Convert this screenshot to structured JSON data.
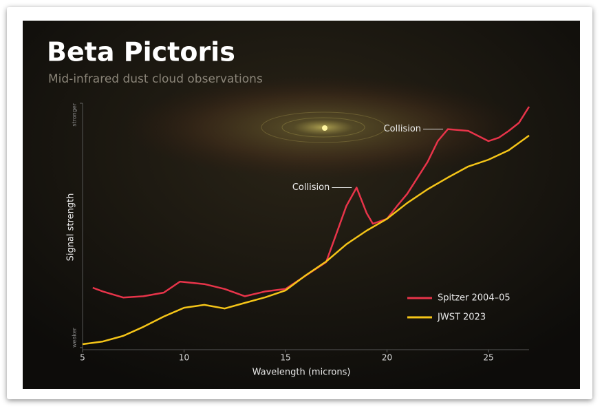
{
  "chart_data": {
    "type": "line",
    "title": "Beta Pictoris",
    "subtitle": "Mid-infrared dust cloud observations",
    "x_label": "Wavelength (microns)",
    "y_label": "Signal strength",
    "xlim": [
      5,
      27
    ],
    "xticks": [
      5,
      10,
      15,
      20,
      25
    ],
    "ylim": [
      0,
      100
    ],
    "yticks": [
      {
        "value": 0,
        "label": "weaker"
      },
      {
        "value": 100,
        "label": "stronger"
      }
    ],
    "legend": "lower right",
    "series": [
      {
        "name": "Spitzer 2004–05",
        "color": "#e8344a",
        "x": [
          5.5,
          6,
          7,
          8,
          9,
          9.8,
          11,
          12,
          13,
          14,
          15,
          16,
          17,
          17.5,
          18,
          18.5,
          19,
          19.3,
          20,
          20.5,
          21,
          22,
          22.5,
          23,
          24,
          25,
          25.5,
          26,
          26.5,
          27
        ],
        "values": [
          24.5,
          23,
          20.5,
          21,
          22.5,
          27,
          26,
          24,
          21,
          23,
          24,
          29.5,
          35,
          46.5,
          58,
          65.5,
          55,
          50.7,
          52.7,
          58,
          63,
          76,
          84.5,
          89.4,
          88.7,
          84.5,
          85.9,
          88.7,
          92,
          98.6
        ]
      },
      {
        "name": "JWST 2023",
        "color": "#f5c518",
        "x": [
          5,
          6,
          7,
          8,
          9,
          10,
          11,
          12,
          13,
          14,
          15,
          16,
          17,
          18,
          19,
          20,
          21,
          22,
          23,
          24,
          25,
          26,
          27
        ],
        "values": [
          1.4,
          2.5,
          4.8,
          8.5,
          12.7,
          16.3,
          17.5,
          16,
          18.3,
          20.6,
          23.4,
          29.6,
          35.2,
          42.3,
          47.9,
          52.7,
          59.2,
          64.8,
          69.6,
          74.1,
          76.9,
          80.8,
          86.8
        ]
      }
    ],
    "annotations": [
      {
        "text": "Collision",
        "x": 18.4,
        "y": 65.5
      },
      {
        "text": "Collision",
        "x": 22.9,
        "y": 89.4
      }
    ]
  }
}
